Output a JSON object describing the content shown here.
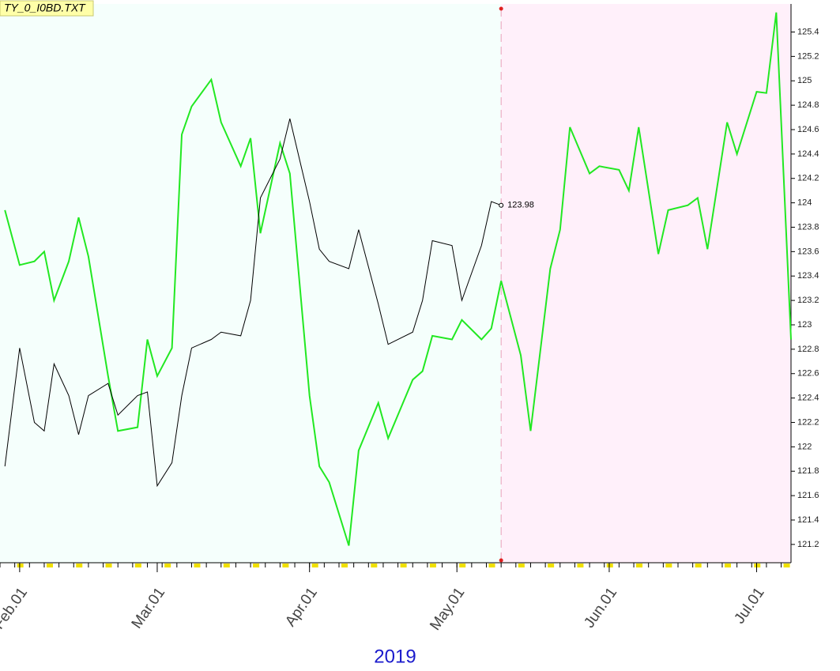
{
  "chart_data": {
    "type": "line",
    "source_label": "TY_0_I0BD.TXT",
    "year_label": "2019",
    "x": [
      "2019-01-29",
      "2019-02-01",
      "2019-02-04",
      "2019-02-06",
      "2019-02-08",
      "2019-02-11",
      "2019-02-13",
      "2019-02-15",
      "2019-02-19",
      "2019-02-21",
      "2019-02-25",
      "2019-02-27",
      "2019-03-01",
      "2019-03-04",
      "2019-03-06",
      "2019-03-08",
      "2019-03-12",
      "2019-03-14",
      "2019-03-18",
      "2019-03-20",
      "2019-03-22",
      "2019-03-26",
      "2019-03-28",
      "2019-04-01",
      "2019-04-03",
      "2019-04-05",
      "2019-04-09",
      "2019-04-11",
      "2019-04-15",
      "2019-04-17",
      "2019-04-22",
      "2019-04-24",
      "2019-04-26",
      "2019-04-30",
      "2019-05-02",
      "2019-05-06",
      "2019-05-08",
      "2019-05-10",
      "2019-05-14",
      "2019-05-16",
      "2019-05-20",
      "2019-05-22",
      "2019-05-24",
      "2019-05-28",
      "2019-05-30",
      "2019-06-03",
      "2019-06-05",
      "2019-06-07",
      "2019-06-11",
      "2019-06-13",
      "2019-06-17",
      "2019-06-19",
      "2019-06-21",
      "2019-06-25",
      "2019-06-27",
      "2019-07-01",
      "2019-07-03",
      "2019-07-05",
      "2019-07-08"
    ],
    "series": [
      {
        "name": "TY",
        "color": "#22e822",
        "values": [
          123.94,
          123.49,
          123.52,
          123.6,
          123.2,
          123.52,
          123.88,
          123.56,
          122.58,
          122.13,
          122.16,
          122.88,
          122.58,
          122.81,
          124.56,
          124.79,
          125.01,
          124.66,
          124.3,
          124.53,
          123.75,
          124.49,
          124.24,
          122.42,
          121.84,
          121.71,
          121.19,
          121.97,
          122.36,
          122.07,
          122.55,
          122.62,
          122.91,
          122.88,
          123.04,
          122.88,
          122.97,
          123.36,
          122.75,
          122.13,
          123.46,
          123.78,
          124.62,
          124.24,
          124.3,
          124.27,
          124.1,
          124.62,
          123.58,
          123.94,
          123.98,
          124.04,
          123.62,
          124.66,
          124.4,
          124.91,
          124.9,
          125.56,
          122.88
        ]
      },
      {
        "name": "I0BD",
        "color": "#000000",
        "values": [
          121.84,
          122.81,
          122.2,
          122.13,
          122.68,
          122.42,
          122.1,
          122.42,
          122.52,
          122.26,
          122.42,
          122.45,
          121.68,
          121.87,
          122.42,
          122.81,
          122.88,
          122.94,
          122.91,
          123.2,
          124.04,
          124.36,
          124.69,
          124.01,
          123.62,
          123.52,
          123.46,
          123.78,
          123.17,
          122.84,
          122.94,
          123.2,
          123.69,
          123.65,
          123.2,
          123.65,
          124.01,
          123.98,
          null,
          null,
          null,
          null,
          null,
          null,
          null,
          null,
          null,
          null,
          null,
          null,
          null,
          null,
          null,
          null,
          null,
          null,
          null,
          null,
          null
        ]
      }
    ],
    "label_last_of_series": 1,
    "highlight_from": "2019-05-10",
    "xlim": [
      "2019-01-28",
      "2019-07-08"
    ],
    "xticks": [
      {
        "value": "2019-02-01",
        "label": "Feb.01"
      },
      {
        "value": "2019-03-01",
        "label": "Mar.01"
      },
      {
        "value": "2019-04-01",
        "label": "Apr.01"
      },
      {
        "value": "2019-05-01",
        "label": "May.01"
      },
      {
        "value": "2019-06-01",
        "label": "Jun.01"
      },
      {
        "value": "2019-07-01",
        "label": "Jul.01"
      }
    ],
    "ylim": [
      121.05,
      125.63
    ],
    "yticks": [
      121.2,
      121.4,
      121.6,
      121.8,
      122,
      122.2,
      122.4,
      122.6,
      122.8,
      123,
      123.2,
      123.4,
      123.6,
      123.8,
      124,
      124.2,
      124.4,
      124.6,
      124.8,
      125,
      125.2,
      125.4
    ],
    "axis_side": "right"
  }
}
